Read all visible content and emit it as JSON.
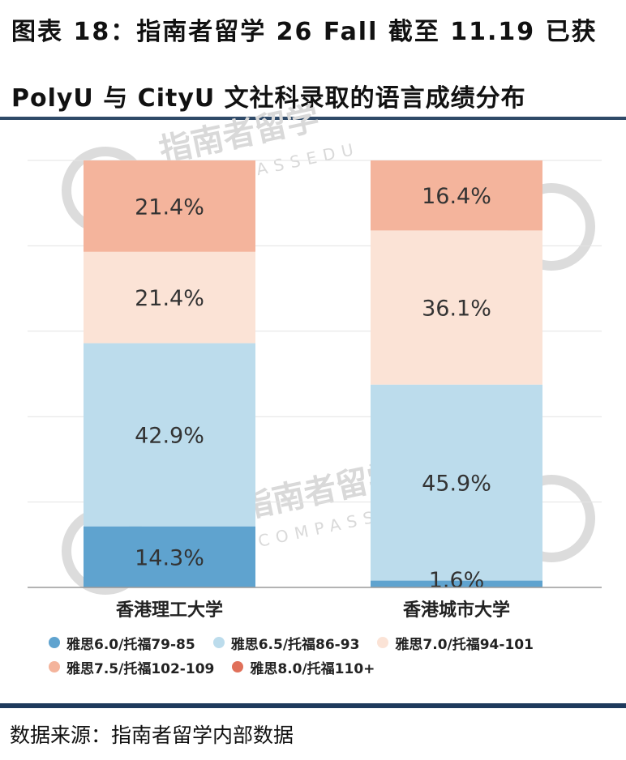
{
  "title": {
    "line1": "图表 18：指南者留学 26 Fall 截至 11.19 已获",
    "line2": "PolyU 与 CityU 文社科录取的语言成绩分布"
  },
  "source": "数据来源：指南者留学内部数据",
  "chart_data": {
    "type": "bar",
    "stacked": true,
    "categories": [
      "香港理工大学",
      "香港城市大学"
    ],
    "series": [
      {
        "name": "雅思6.0/托福79-85",
        "color": "#5fa3cf",
        "values": [
          14.3,
          1.6
        ]
      },
      {
        "name": "雅思6.5/托福86-93",
        "color": "#bcdcec",
        "values": [
          42.9,
          45.9
        ]
      },
      {
        "name": "雅思7.0/托福94-101",
        "color": "#fbe3d6",
        "values": [
          21.4,
          36.1
        ]
      },
      {
        "name": "雅思7.5/托福102-109",
        "color": "#f4b49c",
        "values": [
          21.4,
          16.4
        ]
      },
      {
        "name": "雅思8.0/托福110+",
        "color": "#e0705a",
        "values": [
          0,
          0
        ]
      }
    ],
    "data_labels": [
      [
        "14.3%",
        "42.9%",
        "21.4%",
        "21.4%",
        ""
      ],
      [
        "1.6%",
        "45.9%",
        "36.1%",
        "16.4%",
        ""
      ]
    ],
    "ylim": [
      0,
      100
    ],
    "grid": true,
    "legend_position": "bottom"
  }
}
